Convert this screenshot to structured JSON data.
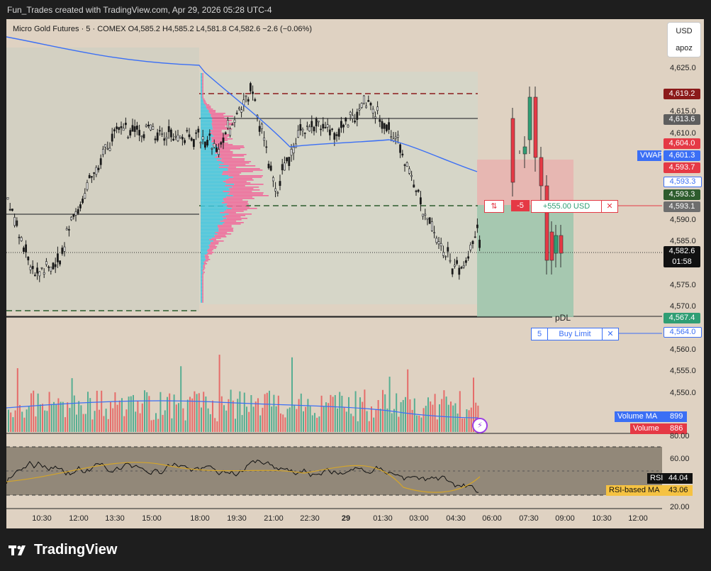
{
  "attribution": "Fun_Trades created with TradingView.com, Apr 29, 2026 05:28 UTC-4",
  "header": {
    "symbol": "Micro Gold Futures · 5 · COMEX",
    "open": "O4,585.2",
    "high": "H4,585.2",
    "low": "L4,581.8",
    "close": "C4,582.6",
    "change": "−2.6 (−0.06%)"
  },
  "currency": {
    "line1": "USD",
    "line2": "apoz"
  },
  "price_axis": [
    "4,625.0",
    "4,615.0",
    "4,610.0",
    "4,590.0",
    "4,585.0",
    "4,575.0",
    "4,570.0",
    "4,560.0",
    "4,555.0",
    "4,550.0"
  ],
  "price_tags": [
    {
      "label": "4,619.2",
      "color": "#8b1a1a"
    },
    {
      "label": "4,613.6",
      "color": "#5e5e5e"
    },
    {
      "label": "4,604.0",
      "color": "#e53945"
    },
    {
      "label": "4,601.3",
      "color": "#3b6ff5"
    },
    {
      "label": "4,593.7",
      "color": "#e53945"
    },
    {
      "label": "4,593.3",
      "color": "#ffffff"
    },
    {
      "label": "4,593.3",
      "color": "#2d5c2d"
    },
    {
      "label": "4,593.1",
      "color": "#6e6e6e"
    },
    {
      "label": "4,582.6",
      "color": "#111111"
    },
    {
      "label": "4,567.4",
      "color": "#2f9e74"
    },
    {
      "label": "4,564.0",
      "color": "#ffffff"
    }
  ],
  "countdown": "01:58",
  "vwap_label": "VWAP",
  "pdl_label": "pDL",
  "position": {
    "side_icon": "⇅",
    "qty": "-5",
    "pnl": "+555.00 USD",
    "close": "✕"
  },
  "buy_limit": {
    "qty": "5",
    "label": "Buy Limit",
    "close": "✕"
  },
  "volume_legend": [
    {
      "name": "Volume MA",
      "value": "899",
      "color": "#3b6ff5"
    },
    {
      "name": "Volume",
      "value": "886",
      "color": "#e53945"
    }
  ],
  "rsi_axis": [
    "80.00",
    "60.00",
    "20.00"
  ],
  "rsi_legend": [
    {
      "name": "RSI",
      "value": "44.04",
      "bg": "#111111",
      "fg": "#ffffff"
    },
    {
      "name": "RSI-based MA",
      "value": "43.06",
      "bg": "#f5c242",
      "fg": "#111111"
    }
  ],
  "time_axis": [
    "10:30",
    "12:00",
    "13:30",
    "15:00",
    "18:00",
    "19:30",
    "21:00",
    "22:30",
    "29",
    "01:30",
    "03:00",
    "04:30",
    "06:00",
    "07:30",
    "09:00",
    "10:30",
    "12:00"
  ],
  "logo_text": "TradingView"
}
